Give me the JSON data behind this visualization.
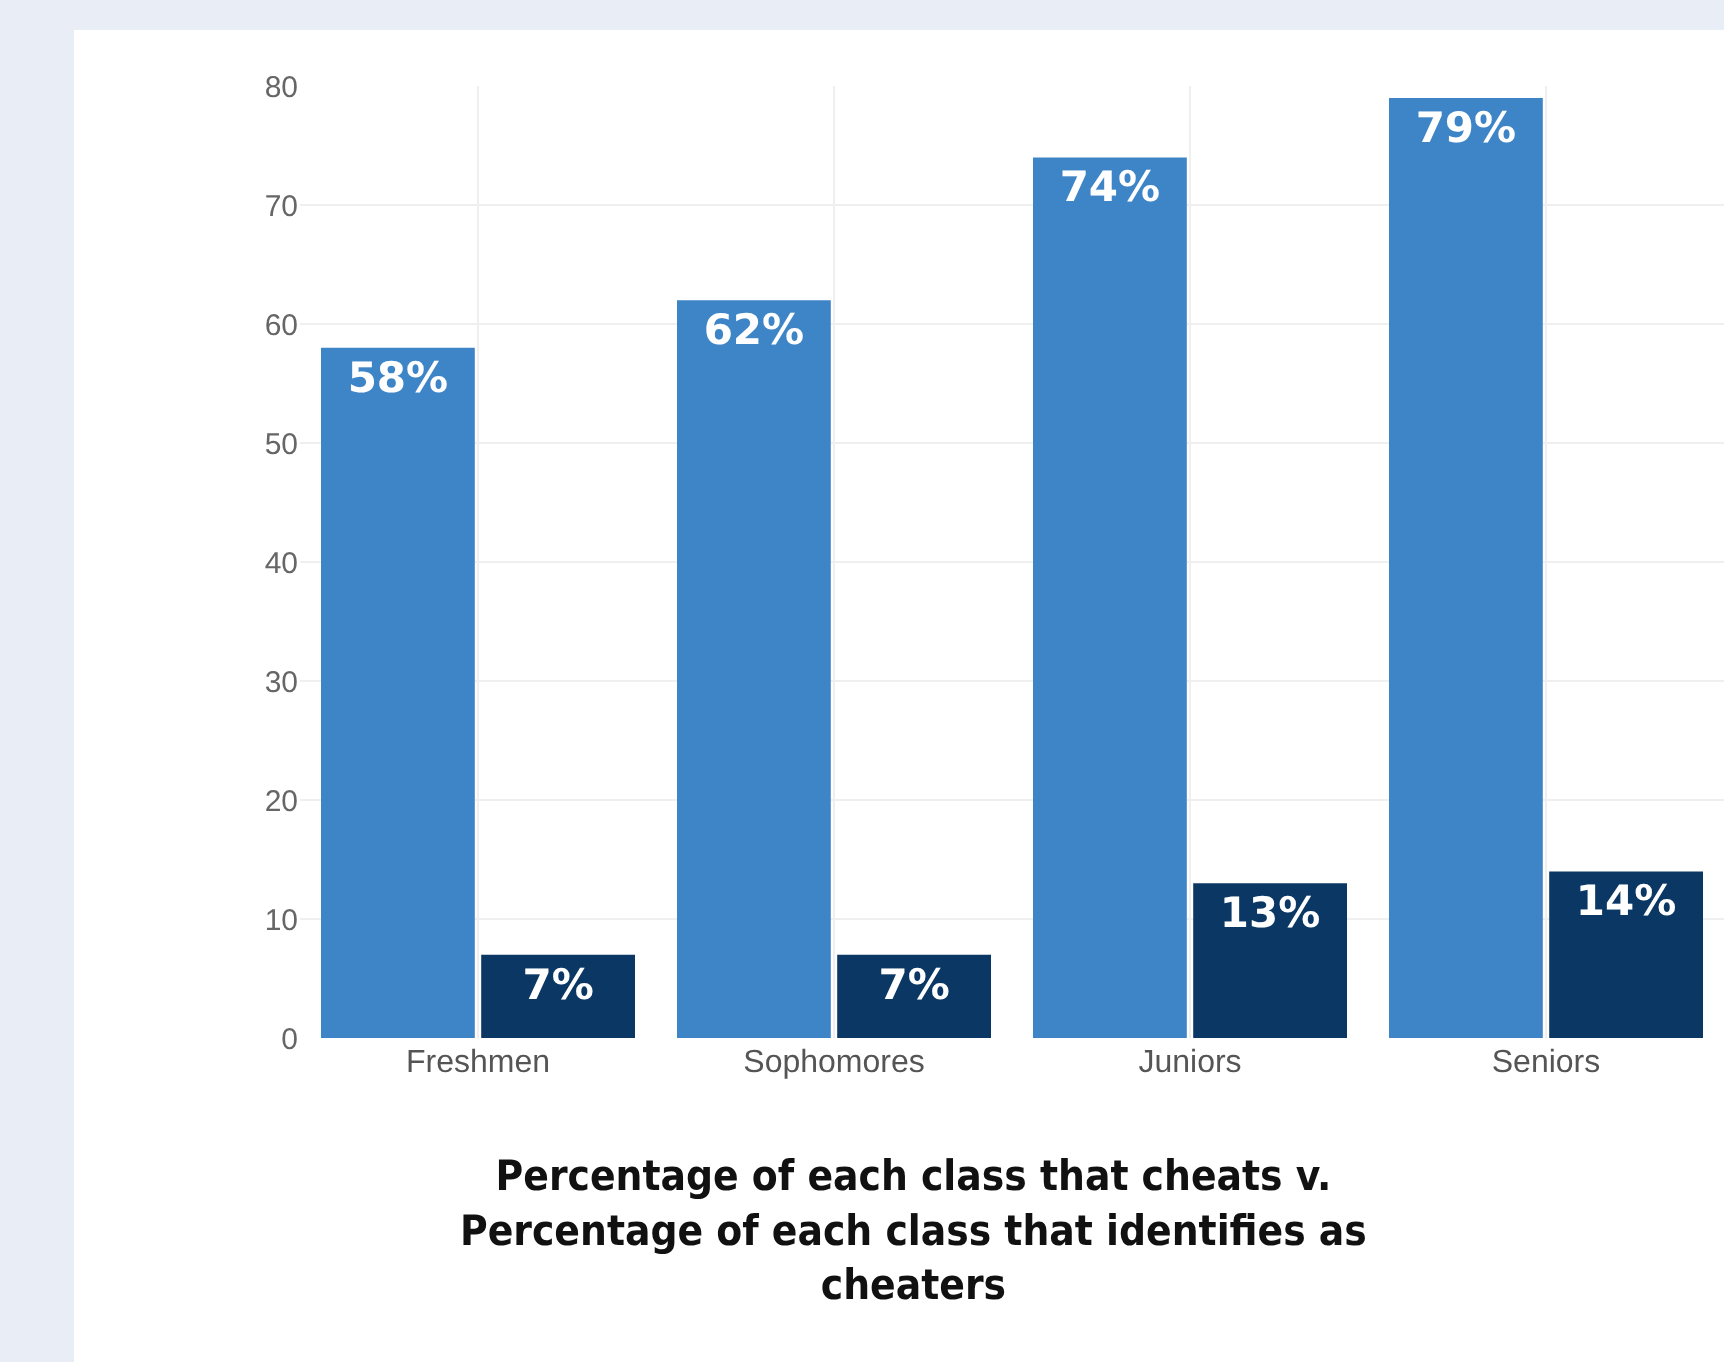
{
  "chart_data": {
    "type": "bar",
    "title": "Percentage of each class that cheats v. Percentage of each class that identifies as cheaters",
    "categories": [
      "Freshmen",
      "Sophomores",
      "Juniors",
      "Seniors"
    ],
    "series": [
      {
        "color": "#3d85c6",
        "values": [
          58,
          62,
          74,
          79
        ],
        "value_labels": [
          "58%",
          "62%",
          "74%",
          "79%"
        ]
      },
      {
        "color": "#0b3764",
        "values": [
          7,
          7,
          13,
          14
        ],
        "value_labels": [
          "7%",
          "7%",
          "13%",
          "14%"
        ]
      }
    ],
    "ylim": [
      0,
      80
    ],
    "yticks": [
      0,
      10,
      20,
      30,
      40,
      50,
      60,
      70,
      80
    ],
    "grid": true
  }
}
